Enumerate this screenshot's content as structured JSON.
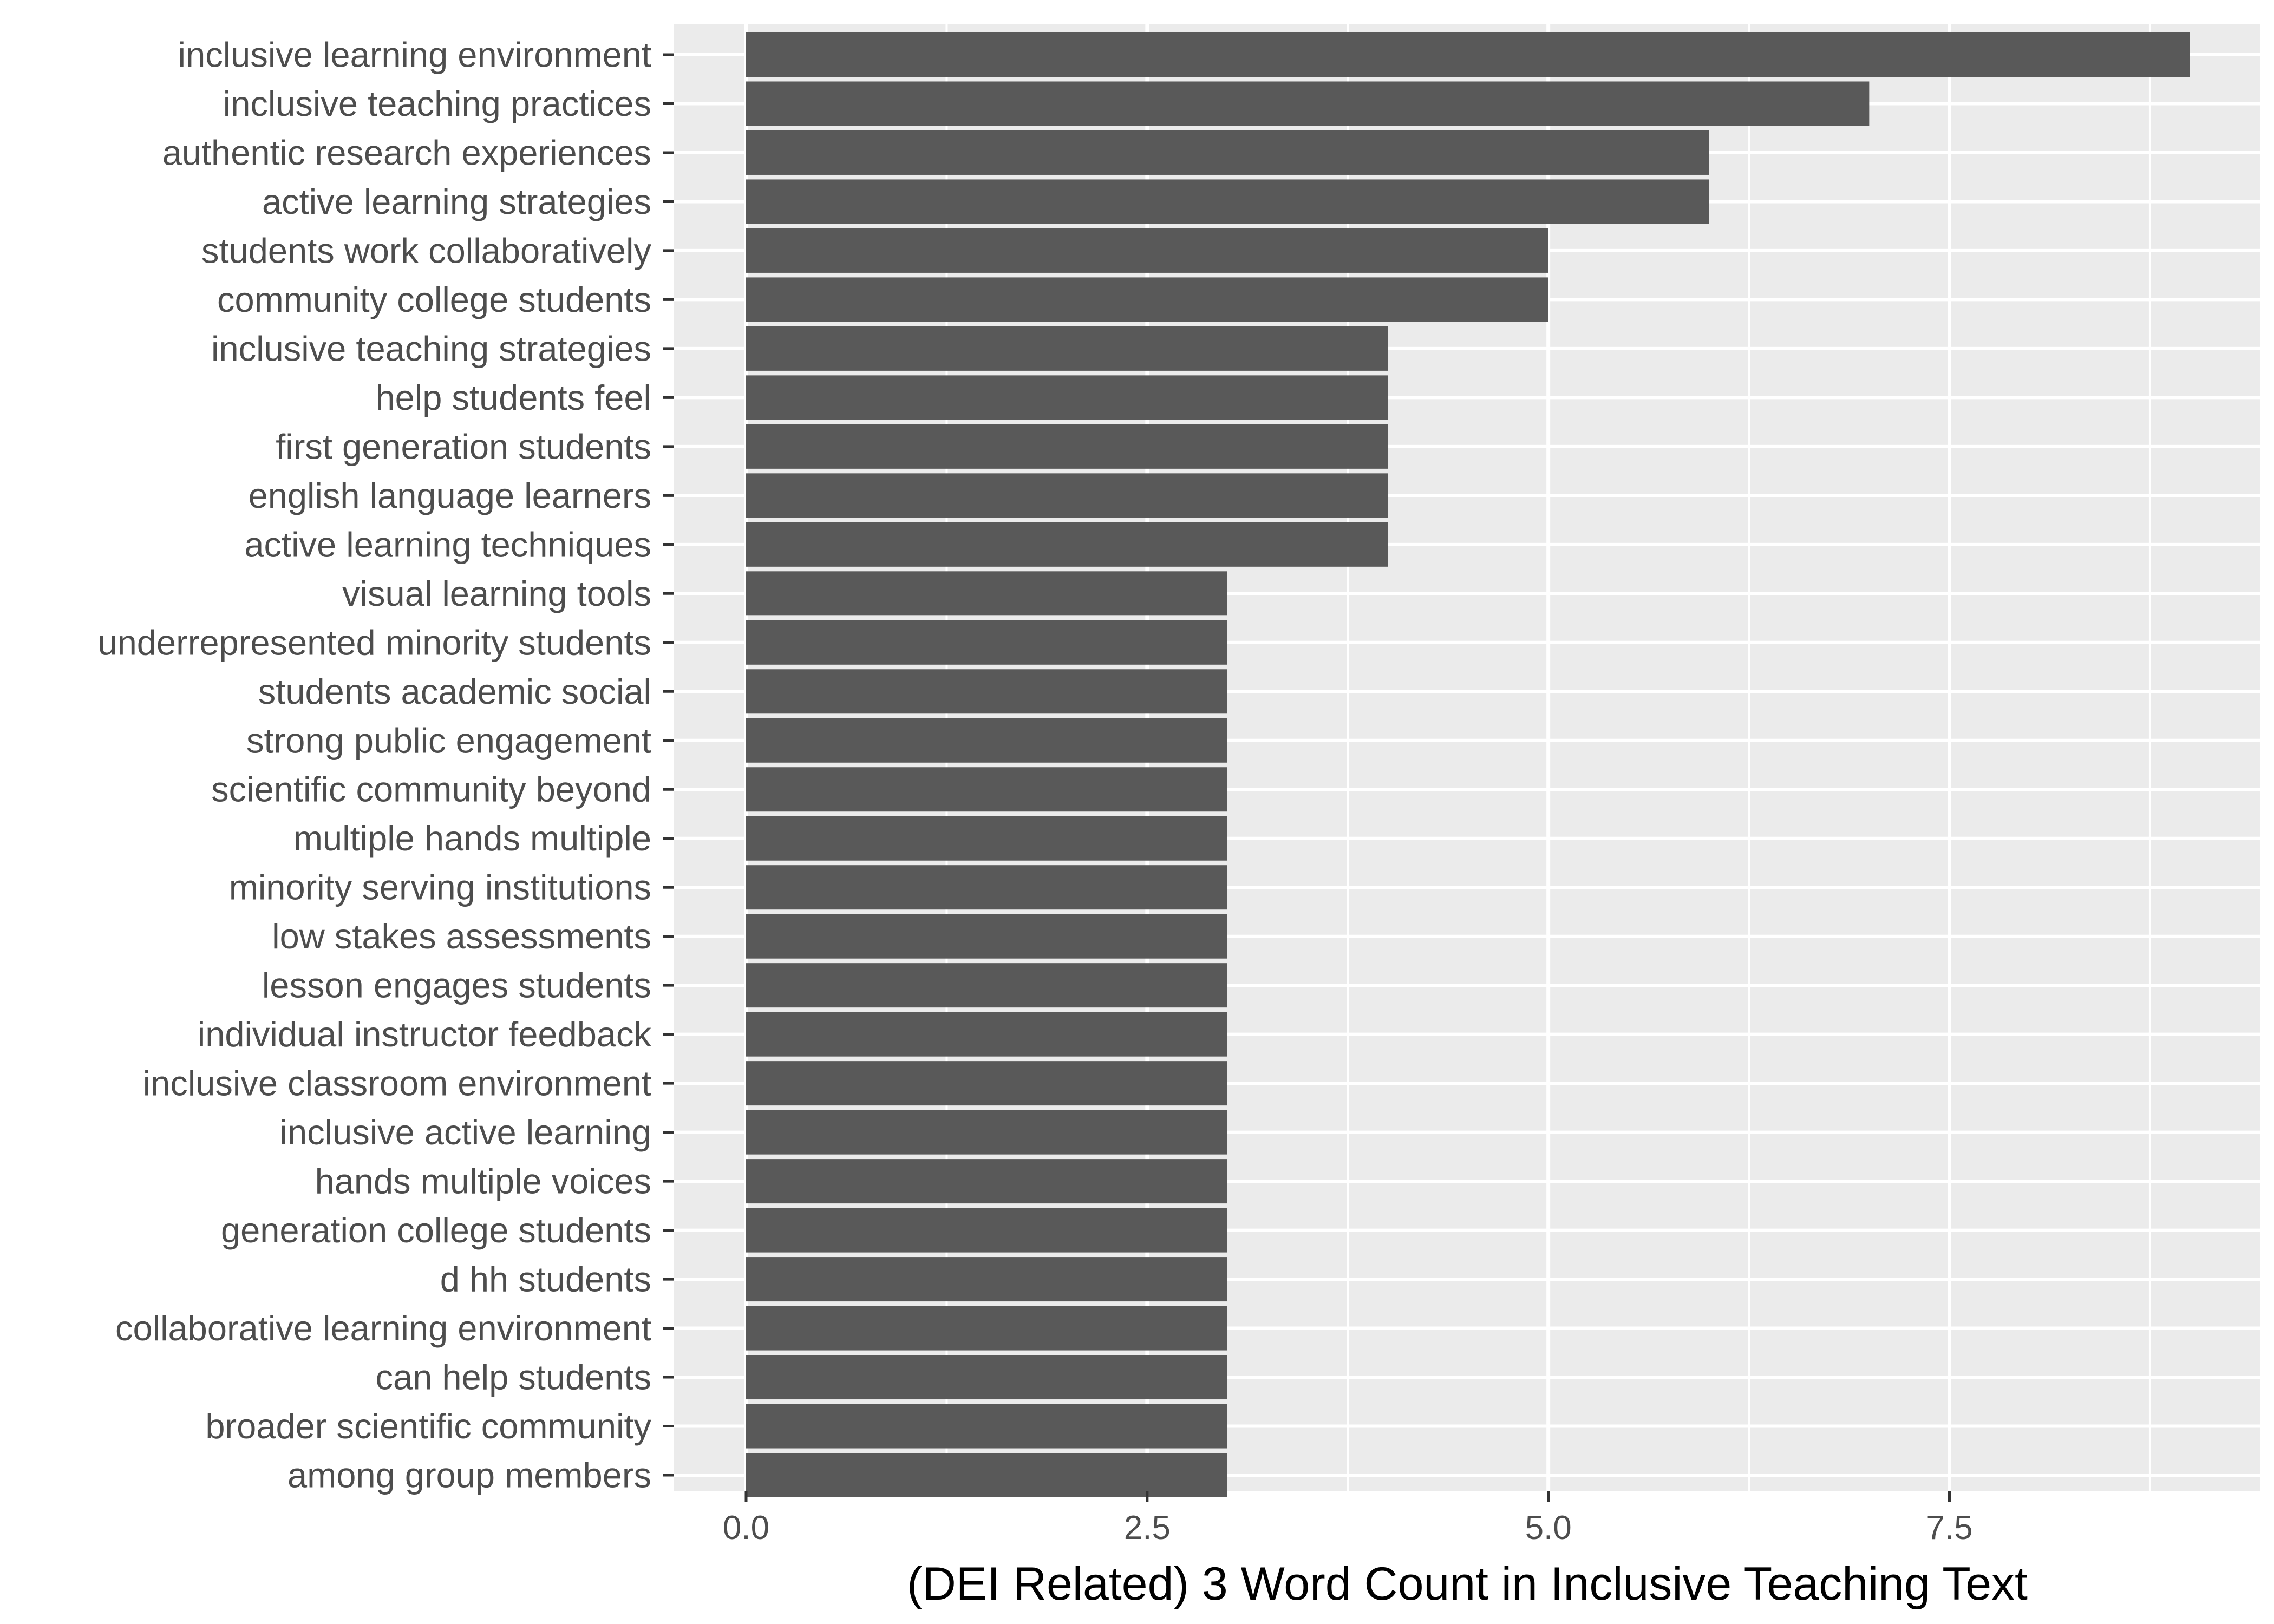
{
  "chart_data": {
    "type": "bar",
    "orientation": "horizontal",
    "title": "",
    "xlabel": "(DEI Related) 3 Word Count in Inclusive Teaching Text",
    "ylabel": "",
    "xlim": [
      0,
      9.35
    ],
    "x_ticks": [
      "0.0",
      "2.5",
      "5.0",
      "7.5"
    ],
    "grid": true,
    "categories": [
      "inclusive learning environment",
      "inclusive teaching practices",
      "authentic research experiences",
      "active learning strategies",
      "students work collaboratively",
      "community college students",
      "inclusive teaching strategies",
      "help students feel",
      "first generation students",
      "english language learners",
      "active learning techniques",
      "visual learning tools",
      "underrepresented minority students",
      "students academic social",
      "strong public engagement",
      "scientific community beyond",
      "multiple hands multiple",
      "minority serving institutions",
      "low stakes assessments",
      "lesson engages students",
      "individual instructor feedback",
      "inclusive classroom environment",
      "inclusive active learning",
      "hands multiple voices",
      "generation college students",
      "d hh students",
      "collaborative learning environment",
      "can help students",
      "broader scientific community",
      "among group members"
    ],
    "values": [
      9,
      7,
      6,
      6,
      5,
      5,
      4,
      4,
      4,
      4,
      4,
      3,
      3,
      3,
      3,
      3,
      3,
      3,
      3,
      3,
      3,
      3,
      3,
      3,
      3,
      3,
      3,
      3,
      3,
      3
    ],
    "colors": {
      "bar": "#595959",
      "panel": "#ebebeb",
      "grid": "#ffffff",
      "text": "#4d4d4d"
    }
  }
}
